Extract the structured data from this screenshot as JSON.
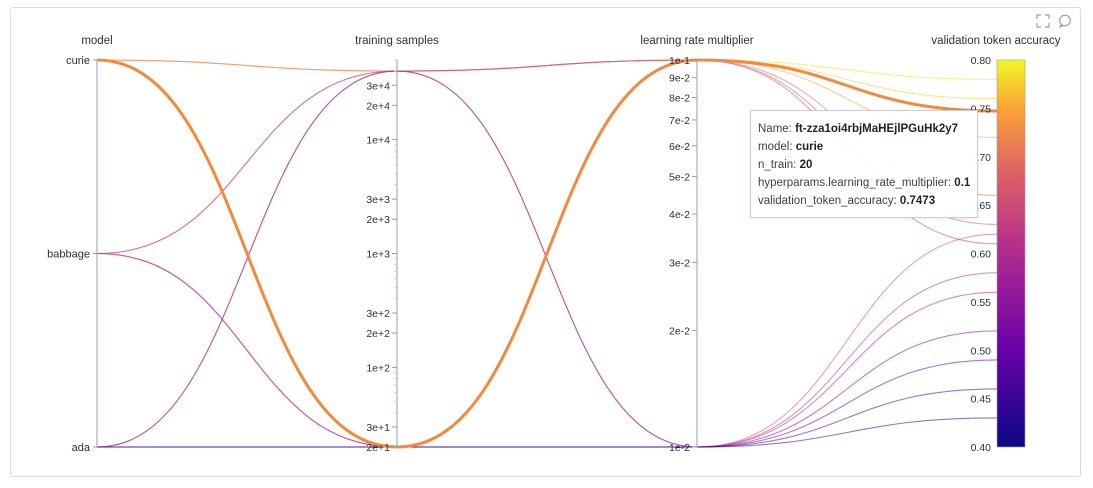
{
  "toolbar": {
    "expand_icon": "expand-icon",
    "comment_icon": "comment-icon"
  },
  "chart_data": {
    "type": "parallel_coordinates",
    "axes": [
      {
        "label": "model",
        "kind": "categorical",
        "categories": [
          "curie",
          "babbage",
          "ada"
        ]
      },
      {
        "label": "training samples",
        "kind": "log",
        "range": [
          20,
          50000
        ],
        "ticks": [
          "3e+4",
          "2e+4",
          "1e+4",
          "3e+3",
          "2e+3",
          "1e+3",
          "3e+2",
          "2e+2",
          "1e+2",
          "3e+1",
          "2e+1"
        ],
        "tick_values": [
          30000,
          20000,
          10000,
          3000,
          2000,
          1000,
          300,
          200,
          100,
          30,
          20
        ]
      },
      {
        "label": "learning rate multiplier",
        "kind": "log",
        "range": [
          0.01,
          0.1
        ],
        "ticks": [
          "1e-1",
          "9e-2",
          "8e-2",
          "7e-2",
          "6e-2",
          "5e-2",
          "4e-2",
          "3e-2",
          "2e-2",
          "1e-2"
        ],
        "tick_values": [
          0.1,
          0.09,
          0.08,
          0.07,
          0.06,
          0.05,
          0.04,
          0.03,
          0.02,
          0.01
        ]
      },
      {
        "label": "validation token accuracy",
        "kind": "linear",
        "range": [
          0.4,
          0.8
        ],
        "ticks": [
          "0.80",
          "0.75",
          "0.70",
          "0.65",
          "0.60",
          "0.55",
          "0.50",
          "0.45",
          "0.40"
        ],
        "tick_values": [
          0.8,
          0.75,
          0.7,
          0.65,
          0.6,
          0.55,
          0.5,
          0.45,
          0.4
        ]
      }
    ],
    "colorscale": {
      "min": 0.4,
      "max": 0.8,
      "colors": [
        "#0d0887",
        "#6a00a8",
        "#b12a90",
        "#e16462",
        "#fca636",
        "#f0f921"
      ]
    },
    "series": [
      {
        "model": "curie",
        "training_samples": 20,
        "lr": 0.1,
        "accuracy": 0.7473,
        "highlight": true
      },
      {
        "model": "curie",
        "training_samples": 20,
        "lr": 0.1,
        "accuracy": 0.78
      },
      {
        "model": "curie",
        "training_samples": 20,
        "lr": 0.1,
        "accuracy": 0.76
      },
      {
        "model": "curie",
        "training_samples": 40000,
        "lr": 0.1,
        "accuracy": 0.72
      },
      {
        "model": "curie",
        "training_samples": 40000,
        "lr": 0.1,
        "accuracy": 0.66
      },
      {
        "model": "babbage",
        "training_samples": 40000,
        "lr": 0.1,
        "accuracy": 0.63
      },
      {
        "model": "babbage",
        "training_samples": 40000,
        "lr": 0.1,
        "accuracy": 0.61
      },
      {
        "model": "babbage",
        "training_samples": 20,
        "lr": 0.01,
        "accuracy": 0.58
      },
      {
        "model": "babbage",
        "training_samples": 20,
        "lr": 0.01,
        "accuracy": 0.56
      },
      {
        "model": "ada",
        "training_samples": 40000,
        "lr": 0.01,
        "accuracy": 0.62
      },
      {
        "model": "ada",
        "training_samples": 40000,
        "lr": 0.01,
        "accuracy": 0.52
      },
      {
        "model": "ada",
        "training_samples": 20,
        "lr": 0.01,
        "accuracy": 0.49
      },
      {
        "model": "ada",
        "training_samples": 20,
        "lr": 0.01,
        "accuracy": 0.46
      },
      {
        "model": "ada",
        "training_samples": 20,
        "lr": 0.01,
        "accuracy": 0.43
      }
    ]
  },
  "tooltip": {
    "name_label": "Name: ",
    "name_value": "ft-zza1oi4rbjMaHEjlPGuHk2y7",
    "model_label": "model: ",
    "model_value": "curie",
    "ntrain_label": "n_train: ",
    "ntrain_value": "20",
    "lr_label": "hyperparams.learning_rate_multiplier: ",
    "lr_value": "0.1",
    "acc_label": "validation_token_accuracy: ",
    "acc_value": "0.7473"
  }
}
